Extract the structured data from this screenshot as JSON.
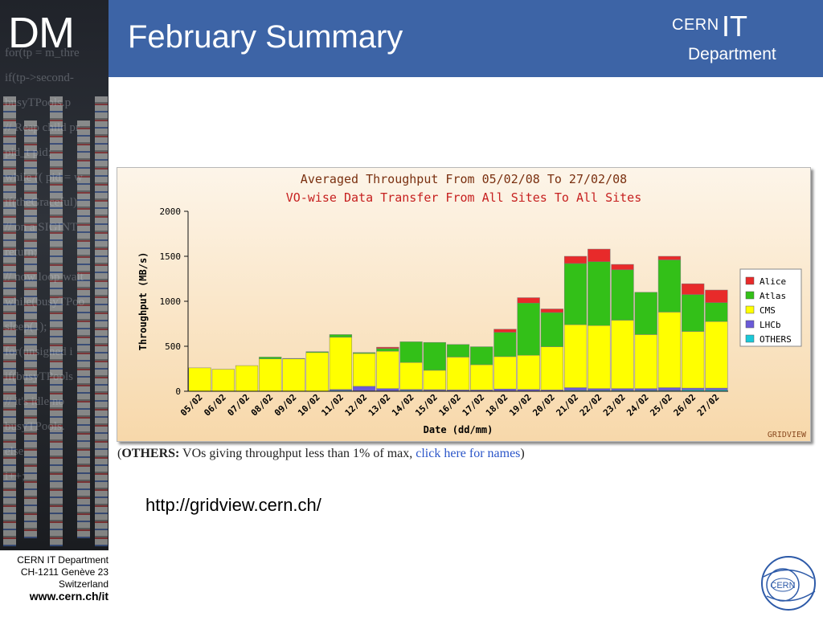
{
  "header": {
    "logo_text": "DM",
    "title": "February Summary",
    "cern_it_logo": {
      "cern": "CERN",
      "it": "IT",
      "department": "Department"
    }
  },
  "left_strip_code": [
    "for(tp = m_thre",
    "if(tp->second-",
    "busyTPools.p",
    "// Reap child pr",
    "pid_t pid;",
    "while (( pid = w",
    "if(theGraceful)",
    "// on a SIGINT",
    "return;",
    "// now loop wait",
    "while(busyTPoo",
    "sleep(1);",
    "for(unsigned i",
    "if(busyTPools",
    "// it's idle no",
    "busyTPools.",
    "else",
    "i++;"
  ],
  "chart_data": {
    "type": "bar",
    "stacked": true,
    "title": "Averaged Throughput From 05/02/08 To 27/02/08",
    "subtitle": "VO-wise Data Transfer From All Sites To All Sites",
    "xlabel": "Date (dd/mm)",
    "ylabel": "Throughput (MB/s)",
    "ylim": [
      0,
      2000
    ],
    "yticks": [
      0,
      500,
      1000,
      1500,
      2000
    ],
    "grid": false,
    "legend_position": "right",
    "watermark": "GRIDVIEW",
    "categories": [
      "05/02",
      "06/02",
      "07/02",
      "08/02",
      "09/02",
      "10/02",
      "11/02",
      "12/02",
      "13/02",
      "14/02",
      "15/02",
      "16/02",
      "17/02",
      "18/02",
      "19/02",
      "20/02",
      "21/02",
      "22/02",
      "23/02",
      "24/02",
      "25/02",
      "26/02",
      "27/02"
    ],
    "series": [
      {
        "name": "OTHERS",
        "color": "#19c8d8",
        "values": [
          0,
          0,
          0,
          0,
          0,
          0,
          10,
          5,
          5,
          10,
          8,
          5,
          5,
          5,
          5,
          5,
          10,
          10,
          10,
          10,
          10,
          15,
          15
        ]
      },
      {
        "name": "LHCb",
        "color": "#6a5ad8",
        "values": [
          0,
          0,
          0,
          0,
          0,
          0,
          10,
          50,
          25,
          10,
          10,
          10,
          10,
          20,
          15,
          10,
          30,
          20,
          20,
          20,
          30,
          20,
          20
        ]
      },
      {
        "name": "CMS",
        "color": "#ffff00",
        "values": [
          260,
          245,
          285,
          360,
          360,
          430,
          580,
          365,
          415,
          300,
          215,
          365,
          280,
          360,
          380,
          480,
          700,
          700,
          760,
          600,
          840,
          630,
          740
        ]
      },
      {
        "name": "Atlas",
        "color": "#33c018",
        "values": [
          0,
          0,
          0,
          20,
          5,
          10,
          30,
          10,
          30,
          230,
          310,
          140,
          200,
          270,
          580,
          380,
          680,
          710,
          560,
          470,
          580,
          410,
          210
        ]
      },
      {
        "name": "Alice",
        "color": "#e82a2a",
        "values": [
          0,
          0,
          0,
          0,
          0,
          0,
          0,
          0,
          15,
          0,
          0,
          0,
          0,
          35,
          60,
          40,
          80,
          140,
          60,
          0,
          40,
          120,
          140
        ]
      }
    ]
  },
  "note": {
    "open_paren": "(",
    "others_label": "OTHERS:",
    "text": " VOs giving throughput less than 1% of max, ",
    "link": "click here for names",
    "close_paren": ")"
  },
  "url_text": "http://gridview.cern.ch/",
  "footer": {
    "line1": "CERN IT Department",
    "line2": "CH-1211 Genève 23",
    "line3": "Switzerland",
    "web": "www.cern.ch/it",
    "logo_text": "CERN"
  },
  "colors": {
    "header_blue": "#3d64a6",
    "title_color": "#7a3010",
    "subtitle_color": "#c62020",
    "axis_color": "#111111"
  }
}
